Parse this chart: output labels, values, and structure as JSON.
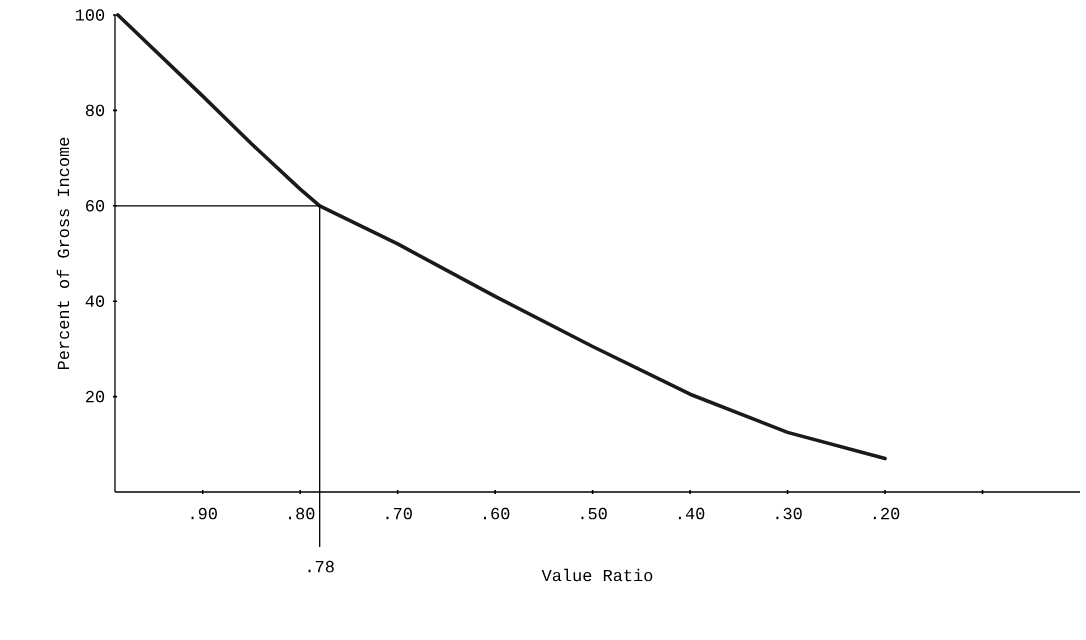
{
  "chart_data": {
    "type": "line",
    "xlabel": "Value Ratio",
    "ylabel": "Percent of Gross Income",
    "x": [
      0.987,
      0.9,
      0.85,
      0.8,
      0.78,
      0.7,
      0.6,
      0.5,
      0.4,
      0.3,
      0.2
    ],
    "series": [
      {
        "color": "#1a1a1a",
        "values": [
          100,
          83,
          73,
          63.5,
          60,
          52,
          41,
          30.5,
          20.5,
          12.5,
          7
        ]
      }
    ],
    "xlim": [
      0.99,
      0
    ],
    "ylim": [
      0,
      100
    ],
    "xticks": [
      {
        "value": 0.9,
        "label": ".90"
      },
      {
        "value": 0.8,
        "label": ".80"
      },
      {
        "value": 0.7,
        "label": ".70"
      },
      {
        "value": 0.6,
        "label": ".60"
      },
      {
        "value": 0.5,
        "label": ".50"
      },
      {
        "value": 0.4,
        "label": ".40"
      },
      {
        "value": 0.3,
        "label": ".30"
      },
      {
        "value": 0.2,
        "label": ".20"
      },
      {
        "value": 0.1,
        "label": null
      }
    ],
    "yticks": [
      20,
      40,
      60,
      80,
      100
    ],
    "ref_lines": [
      {
        "axis": "x",
        "value": 0.78,
        "label": ".78"
      },
      {
        "axis": "y",
        "value": 60
      }
    ],
    "grid": false,
    "legend": false,
    "marker": "none",
    "line_style": "solid"
  }
}
